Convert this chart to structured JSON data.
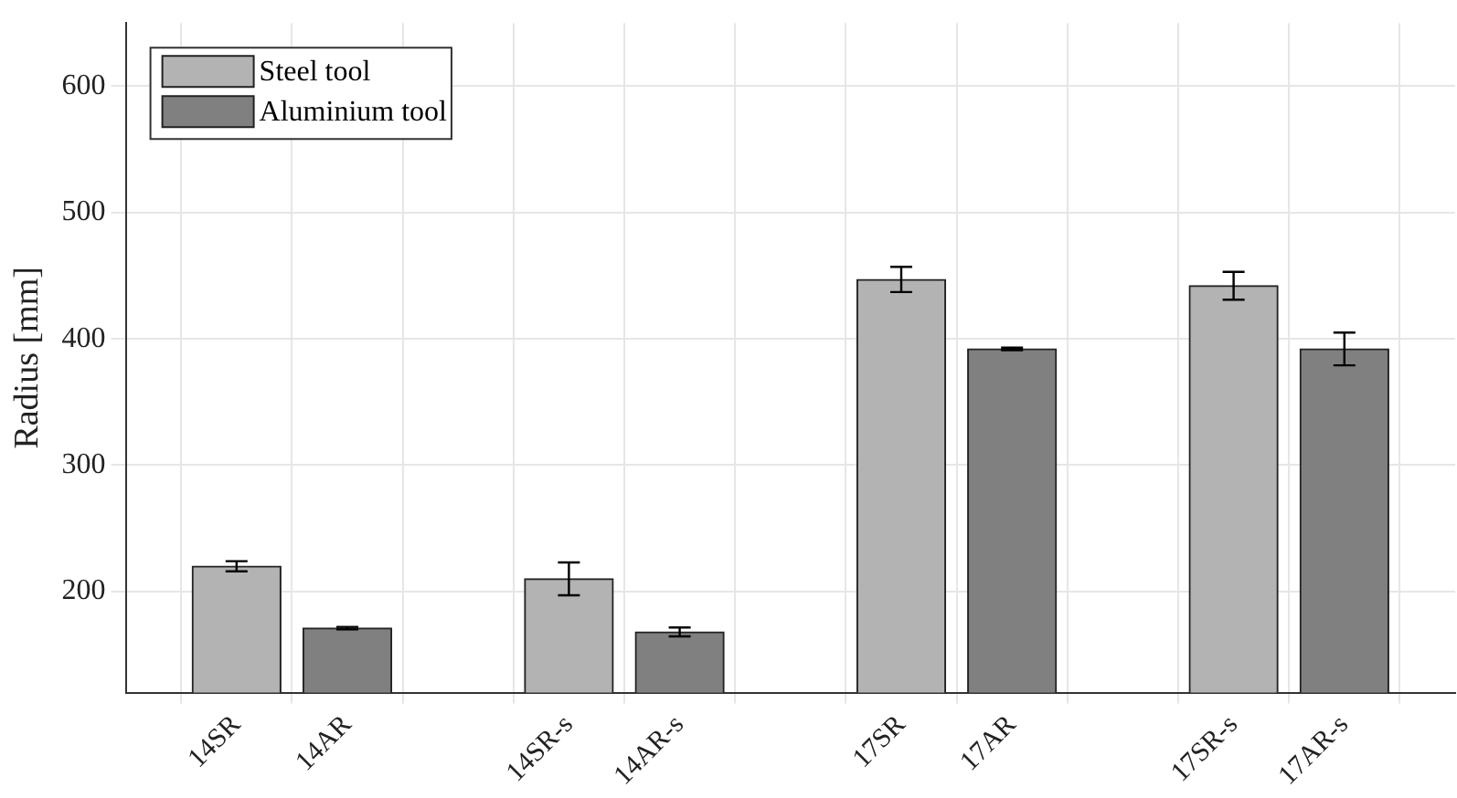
{
  "chart_data": {
    "type": "bar",
    "ylabel": "Radius [mm]",
    "categories": [
      "14SR",
      "14AR",
      null,
      "14SR-s",
      "14AR-s",
      null,
      "17SR",
      "17AR",
      null,
      "17SR-s",
      "17AR-s"
    ],
    "series": [
      {
        "name": "Steel tool",
        "color": "#b3b3b3",
        "values": [
          220,
          null,
          null,
          210,
          null,
          null,
          447,
          null,
          null,
          442,
          null
        ],
        "errors": [
          4,
          null,
          null,
          13,
          null,
          null,
          10,
          null,
          null,
          11,
          null
        ]
      },
      {
        "name": "Aluminium tool",
        "color": "#808080",
        "values": [
          null,
          171,
          null,
          null,
          168,
          null,
          null,
          392,
          null,
          null,
          392
        ],
        "errors": [
          null,
          1,
          null,
          null,
          3.5,
          null,
          null,
          1,
          null,
          null,
          13
        ]
      }
    ],
    "ylim": [
      120,
      650
    ],
    "yticks": [
      200,
      300,
      400,
      500,
      600
    ],
    "grid": true,
    "legend": "top left"
  }
}
